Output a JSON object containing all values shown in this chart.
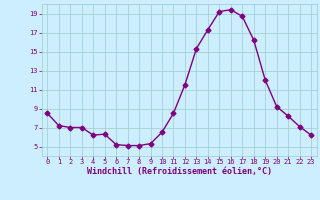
{
  "x": [
    0,
    1,
    2,
    3,
    4,
    5,
    6,
    7,
    8,
    9,
    10,
    11,
    12,
    13,
    14,
    15,
    16,
    17,
    18,
    19,
    20,
    21,
    22,
    23
  ],
  "y": [
    8.5,
    7.2,
    7.0,
    7.0,
    6.2,
    6.3,
    5.2,
    5.1,
    5.1,
    5.3,
    6.5,
    8.5,
    11.5,
    15.3,
    17.3,
    19.2,
    19.4,
    18.7,
    16.2,
    12.0,
    9.2,
    8.2,
    7.1,
    6.2
  ],
  "line_color": "#800080",
  "marker": "D",
  "marker_size": 2.5,
  "bg_color": "#cceeff",
  "grid_color": "#99cccc",
  "xlabel": "Windchill (Refroidissement éolien,°C)",
  "xlabel_color": "#800080",
  "tick_color": "#800080",
  "ylim": [
    4,
    20
  ],
  "xlim": [
    -0.5,
    23.5
  ],
  "yticks": [
    5,
    7,
    9,
    11,
    13,
    15,
    17,
    19
  ],
  "xticks": [
    0,
    1,
    2,
    3,
    4,
    5,
    6,
    7,
    8,
    9,
    10,
    11,
    12,
    13,
    14,
    15,
    16,
    17,
    18,
    19,
    20,
    21,
    22,
    23
  ]
}
